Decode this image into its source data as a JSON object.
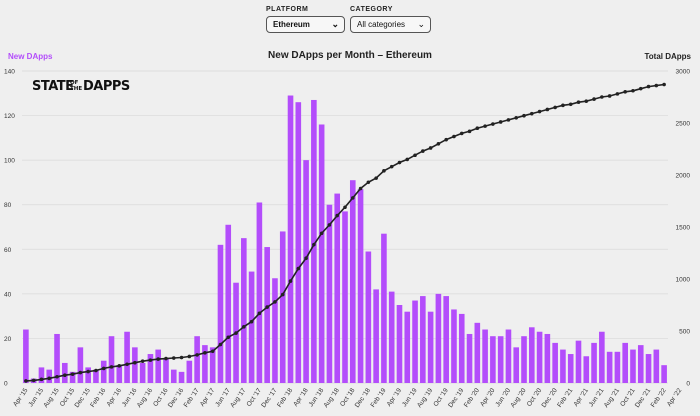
{
  "filters": {
    "platform": {
      "label": "PLATFORM",
      "value": "Ethereum"
    },
    "category": {
      "label": "CATEGORY",
      "value": "All categories"
    }
  },
  "logo": {
    "part1": "STATE",
    "part2a": "OF",
    "part2b": "THE",
    "part3": "DAPPS"
  },
  "colors": {
    "bars": "#b34dfb",
    "line": "#222222",
    "grid": "#d9d9d9"
  },
  "chart_data": {
    "type": "bar",
    "title": "New DApps per Month – Ethereum",
    "y_left_label": "New DApps",
    "y_right_label": "Total DApps",
    "y_left_ticks": [
      0,
      20,
      40,
      60,
      80,
      100,
      120,
      140
    ],
    "y_right_ticks": [
      0,
      500,
      1000,
      1500,
      2000,
      2500,
      3000
    ],
    "ylim_left": [
      0,
      140
    ],
    "ylim_right": [
      0,
      3000
    ],
    "x_tick_labels": [
      "Apr '15",
      "Jun '15",
      "Aug '15",
      "Oct '15",
      "Dec '15",
      "Feb '16",
      "Apr '16",
      "Jun '16",
      "Aug '16",
      "Oct '16",
      "Dec '16",
      "Feb '17",
      "Apr '17",
      "Jun '17",
      "Aug '17",
      "Oct '17",
      "Dec '17",
      "Feb '18",
      "Apr '18",
      "Jun '18",
      "Aug '18",
      "Oct '18",
      "Dec '18",
      "Feb '19",
      "Apr '19",
      "Jun '19",
      "Aug '19",
      "Oct '19",
      "Dec '19",
      "Feb '20",
      "Apr '20",
      "Jun '20",
      "Aug '20",
      "Oct '20",
      "Dec '20",
      "Feb '21",
      "Apr '21",
      "Jun '21",
      "Aug '21",
      "Oct '21",
      "Dec '21",
      "Feb '22",
      "Apr '22"
    ],
    "series": [
      {
        "name": "New DApps",
        "type": "bar",
        "values": [
          24,
          2,
          7,
          6,
          22,
          9,
          5,
          16,
          7,
          6,
          10,
          21,
          8,
          23,
          16,
          9,
          13,
          15,
          11,
          6,
          5,
          10,
          21,
          17,
          16,
          62,
          71,
          45,
          65,
          50,
          81,
          61,
          47,
          68,
          129,
          126,
          100,
          127,
          116,
          80,
          85,
          77,
          91,
          87,
          59,
          42,
          67,
          41,
          35,
          32,
          37,
          39,
          32,
          40,
          39,
          33,
          31,
          22,
          27,
          24,
          21,
          21,
          24,
          16,
          21,
          25,
          23,
          22,
          18,
          15,
          13,
          19,
          12,
          18,
          23,
          14,
          14,
          18,
          15,
          17,
          13,
          15,
          8
        ],
        "start_month": "Apr '15"
      },
      {
        "name": "Total DApps",
        "type": "line",
        "values": [
          20,
          25,
          35,
          45,
          60,
          75,
          85,
          100,
          110,
          120,
          140,
          155,
          165,
          180,
          195,
          210,
          220,
          230,
          235,
          240,
          245,
          255,
          270,
          290,
          305,
          370,
          440,
          480,
          540,
          590,
          670,
          730,
          780,
          850,
          980,
          1100,
          1200,
          1330,
          1440,
          1520,
          1610,
          1690,
          1780,
          1870,
          1930,
          1970,
          2040,
          2080,
          2120,
          2150,
          2190,
          2230,
          2260,
          2300,
          2340,
          2370,
          2400,
          2420,
          2450,
          2470,
          2490,
          2510,
          2530,
          2550,
          2570,
          2590,
          2610,
          2630,
          2650,
          2670,
          2680,
          2700,
          2710,
          2730,
          2750,
          2760,
          2780,
          2800,
          2810,
          2830,
          2850,
          2860,
          2870
        ]
      }
    ],
    "grid": true
  }
}
